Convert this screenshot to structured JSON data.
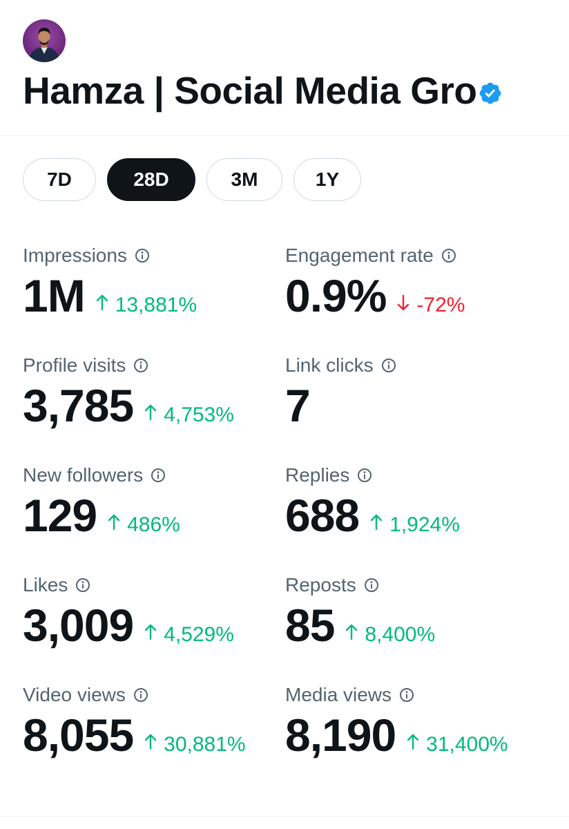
{
  "profile": {
    "name": "Hamza | Social Media Gro",
    "verified": true,
    "verified_color": "#1d9bf0"
  },
  "range_tabs": [
    {
      "label": "7D",
      "active": false
    },
    {
      "label": "28D",
      "active": true
    },
    {
      "label": "3M",
      "active": false
    },
    {
      "label": "1Y",
      "active": false
    }
  ],
  "metrics": {
    "impressions": {
      "label": "Impressions",
      "value": "1M",
      "change": "13,881%",
      "direction": "up"
    },
    "engagement_rate": {
      "label": "Engagement rate",
      "value": "0.9%",
      "change": "-72%",
      "direction": "down"
    },
    "profile_visits": {
      "label": "Profile visits",
      "value": "3,785",
      "change": "4,753%",
      "direction": "up"
    },
    "link_clicks": {
      "label": "Link clicks",
      "value": "7"
    },
    "new_followers": {
      "label": "New followers",
      "value": "129",
      "change": "486%",
      "direction": "up"
    },
    "replies": {
      "label": "Replies",
      "value": "688",
      "change": "1,924%",
      "direction": "up"
    },
    "likes": {
      "label": "Likes",
      "value": "3,009",
      "change": "4,529%",
      "direction": "up"
    },
    "reposts": {
      "label": "Reposts",
      "value": "85",
      "change": "8,400%",
      "direction": "up"
    },
    "video_views": {
      "label": "Video views",
      "value": "8,055",
      "change": "30,881%",
      "direction": "up"
    },
    "media_views": {
      "label": "Media views",
      "value": "8,190",
      "change": "31,400%",
      "direction": "up"
    }
  },
  "colors": {
    "positive": "#00ba7c",
    "negative": "#f4212e",
    "text_primary": "#0f1419",
    "text_secondary": "#536471"
  },
  "icons": {
    "info": "info-circle-icon",
    "up": "arrow-up-icon",
    "down": "arrow-down-icon",
    "verified": "verified-badge-icon"
  }
}
